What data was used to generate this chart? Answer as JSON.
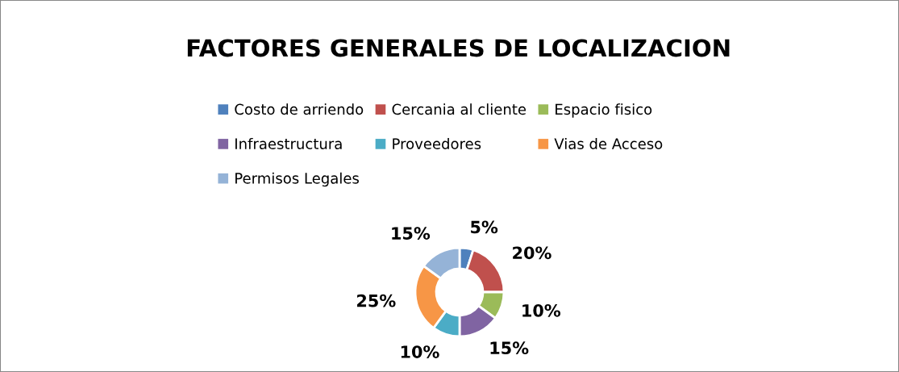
{
  "chart_data": {
    "type": "donut",
    "title": "FACTORES GENERALES DE LOCALIZACION",
    "categories": [
      "Costo de arriendo",
      "Cercania al cliente",
      "Espacio fisico",
      "Infraestructura",
      "Proveedores",
      "Vias de Acceso",
      "Permisos Legales"
    ],
    "values": [
      5,
      20,
      10,
      15,
      10,
      25,
      15
    ],
    "value_labels": [
      "5%",
      "20%",
      "10%",
      "15%",
      "10%",
      "25%",
      "15%"
    ],
    "colors": [
      "#4f81bd",
      "#c0504d",
      "#9bbb59",
      "#8064a2",
      "#4bacc6",
      "#f79646",
      "#95b3d7"
    ],
    "legend": "top"
  }
}
